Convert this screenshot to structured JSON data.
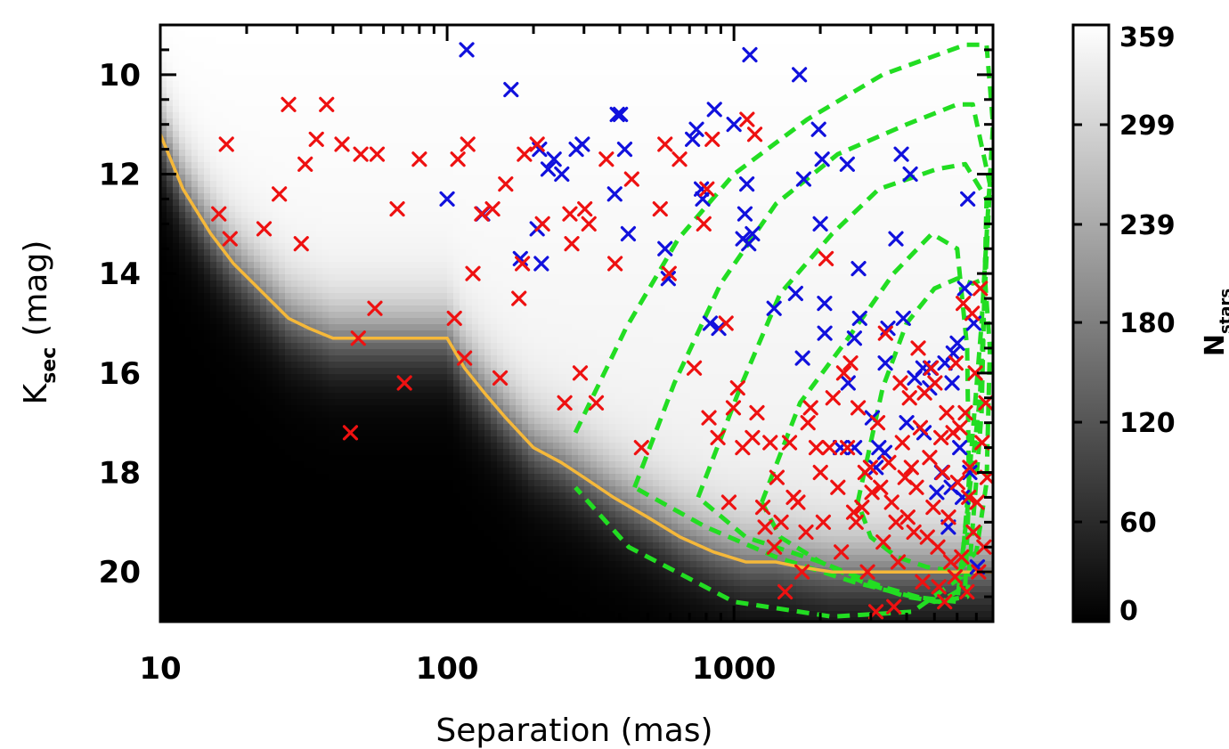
{
  "chart_data": {
    "type": "scatter",
    "xlabel": "Separation (mas)",
    "ylabel_main": "K",
    "ylabel_sub": "sec",
    "ylabel_unit": "(mag)",
    "x_scale": "log",
    "xlim": [
      10,
      8000
    ],
    "ylim": [
      21,
      9
    ],
    "x_ticks": [
      10,
      100,
      1000
    ],
    "x_tick_labels": [
      "10",
      "100",
      "1000"
    ],
    "y_ticks": [
      10,
      12,
      14,
      16,
      18,
      20
    ],
    "y_tick_labels": [
      "10",
      "12",
      "14",
      "16",
      "18",
      "20"
    ],
    "background": "sensitivity map of N_stars, grayscale 0 (black) to 359 (white)",
    "colorbar": {
      "label_main": "N",
      "label_sub": "stars",
      "ticks": [
        0,
        60,
        120,
        180,
        239,
        299,
        359
      ],
      "tick_labels": [
        "0",
        "60",
        "120",
        "180",
        "239",
        "299",
        "359"
      ],
      "range": [
        0,
        359
      ]
    },
    "sensitivity_curve": {
      "color": "#f5b83a",
      "x": [
        10,
        12,
        15,
        18,
        22,
        28,
        33,
        40,
        60,
        100,
        115,
        135,
        160,
        200,
        250,
        300,
        380,
        500,
        650,
        850,
        1100,
        1400,
        1700,
        2200,
        3000,
        8000
      ],
      "y": [
        11.2,
        12.3,
        13.2,
        13.8,
        14.3,
        14.9,
        15.1,
        15.3,
        15.3,
        15.3,
        15.9,
        16.4,
        16.9,
        17.5,
        17.8,
        18.1,
        18.5,
        18.9,
        19.3,
        19.6,
        19.8,
        19.8,
        19.9,
        20.0,
        20.0,
        20.0
      ]
    },
    "contours": {
      "color": "#22dd22",
      "style": "dashed",
      "levels": [
        {
          "x": [
            280,
            420,
            640,
            1000,
            1800,
            3300,
            6400,
            7600,
            8000,
            7300,
            6200,
            4200,
            2200,
            1000,
            430,
            280
          ],
          "y": [
            17.2,
            15.1,
            13.3,
            12.0,
            10.9,
            10.0,
            9.4,
            9.4,
            11.0,
            15.0,
            20.1,
            20.8,
            20.9,
            20.6,
            19.5,
            18.3
          ]
        },
        {
          "x": [
            450,
            620,
            900,
            1400,
            2300,
            4000,
            6000,
            6800,
            7800,
            7200,
            6000,
            4200,
            2600,
            1400,
            800,
            450
          ],
          "y": [
            18.3,
            16.2,
            14.2,
            12.6,
            11.6,
            11.0,
            10.6,
            10.6,
            12.2,
            16.5,
            20.6,
            20.5,
            20.2,
            19.7,
            19.1,
            18.3
          ]
        },
        {
          "x": [
            750,
            1050,
            1450,
            2200,
            3200,
            5100,
            6400,
            7600,
            7300,
            6500,
            5000,
            3300,
            2000,
            1100,
            750
          ],
          "y": [
            18.5,
            16.3,
            14.4,
            13.2,
            12.3,
            11.9,
            11.8,
            12.5,
            16.8,
            20.5,
            20.6,
            20.3,
            19.8,
            19.3,
            18.5
          ]
        },
        {
          "x": [
            1250,
            1700,
            2500,
            3600,
            4900,
            6000,
            6500,
            6600,
            6400,
            5200,
            4000,
            2800,
            2000,
            1450,
            1250
          ],
          "y": [
            18.6,
            16.6,
            15.3,
            14.0,
            13.2,
            13.5,
            15.5,
            18.4,
            20.3,
            20.6,
            20.5,
            20.2,
            19.8,
            19.3,
            18.6
          ]
        },
        {
          "x": [
            2700,
            3300,
            4000,
            5000,
            6000,
            6800,
            7500,
            7800,
            7600,
            7000,
            6000,
            4700,
            3700,
            3000,
            2700
          ],
          "y": [
            18.6,
            16.3,
            15.0,
            14.3,
            14.1,
            14.2,
            14.1,
            15.5,
            18.2,
            19.6,
            20.0,
            19.9,
            19.7,
            19.3,
            18.6
          ]
        }
      ]
    },
    "series": [
      {
        "name": "blue",
        "color": "#1111dd",
        "x": [
          100,
          117,
          133,
          167,
          180,
          206,
          210,
          213,
          225,
          236,
          251,
          282,
          296,
          384,
          392,
          402,
          416,
          428,
          575,
          590,
          717,
          740,
          770,
          778,
          826,
          855,
          885,
          1000,
          1074,
          1092,
          1109,
          1126,
          1136,
          1160,
          1380,
          1640,
          1691,
          1734,
          1750,
          1973,
          2000,
          2030,
          2070,
          2073,
          2350,
          2483,
          2500,
          2630,
          2634,
          2719,
          2743,
          3035,
          3130,
          3200,
          3355,
          3370,
          3442,
          3670,
          3832,
          3894,
          4000,
          4117,
          4264,
          4560,
          4598,
          4809,
          4836,
          5095,
          5300,
          5440,
          5590,
          5722,
          5760,
          5814,
          6010,
          6126,
          6255,
          6375,
          6532,
          6641,
          6856,
          7056
        ],
        "y": [
          12.5,
          9.5,
          12.8,
          10.3,
          13.7,
          13.1,
          11.5,
          13.8,
          11.9,
          11.7,
          12.0,
          11.5,
          11.4,
          12.4,
          10.8,
          10.8,
          11.5,
          13.2,
          13.5,
          14.1,
          11.3,
          11.1,
          12.3,
          12.5,
          15.0,
          10.7,
          15.1,
          11.0,
          13.3,
          12.8,
          12.2,
          13.4,
          9.6,
          13.2,
          14.7,
          14.4,
          10.0,
          15.7,
          12.1,
          11.1,
          13.0,
          11.7,
          14.6,
          15.2,
          17.5,
          11.8,
          16.2,
          15.3,
          17.5,
          13.9,
          14.9,
          16.9,
          17.9,
          17.5,
          17.6,
          15.8,
          15.1,
          13.3,
          11.6,
          14.9,
          17.0,
          12.0,
          16.1,
          15.9,
          17.2,
          16.3,
          15.9,
          18.4,
          18.0,
          15.8,
          19.1,
          18.3,
          16.2,
          15.6,
          15.4,
          17.5,
          18.5,
          14.3,
          12.5,
          18.0,
          15.0,
          19.9
        ]
      },
      {
        "name": "red",
        "color": "#ee1111",
        "x": [
          16,
          17,
          17.5,
          23,
          26,
          28,
          31,
          32,
          35,
          38,
          43,
          46,
          49,
          50,
          56,
          57,
          67,
          71,
          80,
          106,
          109,
          115,
          118,
          123,
          132,
          144,
          153,
          160,
          178,
          183,
          186,
          206,
          215,
          257,
          268,
          272,
          291,
          302,
          312,
          331,
          359,
          385,
          440,
          476,
          553,
          575,
          594,
          646,
          727,
          785,
          805,
          818,
          840,
          879,
          938,
          960,
          995,
          1030,
          1072,
          1111,
          1160,
          1182,
          1203,
          1261,
          1284,
          1337,
          1383,
          1412,
          1460,
          1508,
          1562,
          1613,
          1671,
          1727,
          1783,
          1811,
          1850,
          1936,
          2002,
          2048,
          2095,
          2152,
          2214,
          2303,
          2367,
          2414,
          2487,
          2549,
          2614,
          2665,
          2710,
          2794,
          2865,
          2921,
          2991,
          3028,
          3126,
          3170,
          3244,
          3315,
          3375,
          3464,
          3546,
          3610,
          3672,
          3735,
          3802,
          3866,
          3949,
          4036,
          4092,
          4154,
          4238,
          4325,
          4389,
          4465,
          4546,
          4617,
          4723,
          4813,
          4871,
          4950,
          5022,
          5135,
          5178,
          5270,
          5341,
          5427,
          5515,
          5596,
          5704,
          5804,
          5897,
          5940,
          6025,
          6136,
          6221,
          6301,
          6408,
          6495,
          6581,
          6641,
          6770,
          6831,
          6935,
          7038,
          7127,
          7221,
          7331,
          7439,
          7553,
          7637
        ],
        "y": [
          12.8,
          11.4,
          13.3,
          13.1,
          12.4,
          10.6,
          13.4,
          11.8,
          11.3,
          10.6,
          11.4,
          17.2,
          15.3,
          11.6,
          14.7,
          11.6,
          12.7,
          16.2,
          11.7,
          14.9,
          11.7,
          15.7,
          11.4,
          14.0,
          12.8,
          12.7,
          16.1,
          12.2,
          14.5,
          13.8,
          11.6,
          11.4,
          13.0,
          16.6,
          12.8,
          13.4,
          16.0,
          12.7,
          13.0,
          16.6,
          11.7,
          13.8,
          12.1,
          17.5,
          12.7,
          11.4,
          14.0,
          11.7,
          15.9,
          13.0,
          12.3,
          16.9,
          11.3,
          17.3,
          15.0,
          18.6,
          16.7,
          16.3,
          17.5,
          10.9,
          17.3,
          11.2,
          16.8,
          18.7,
          19.1,
          17.4,
          19.5,
          18.1,
          19.0,
          20.4,
          17.4,
          18.5,
          18.6,
          20.0,
          19.2,
          17.0,
          16.7,
          17.5,
          18.0,
          19.0,
          13.7,
          17.5,
          16.5,
          18.3,
          19.6,
          16.0,
          17.5,
          15.8,
          18.8,
          19.0,
          16.7,
          18.7,
          18.0,
          20.0,
          17.9,
          18.4,
          20.8,
          17.0,
          18.3,
          19.4,
          15.2,
          17.8,
          18.6,
          20.7,
          19.0,
          19.8,
          16.2,
          17.4,
          18.1,
          18.9,
          16.5,
          17.9,
          19.2,
          18.3,
          15.5,
          17.1,
          20.2,
          16.4,
          19.3,
          17.7,
          15.9,
          18.7,
          16.2,
          19.5,
          20.3,
          17.3,
          18.0,
          20.6,
          16.8,
          18.9,
          19.8,
          17.2,
          20.1,
          15.8,
          18.2,
          17.1,
          19.7,
          14.6,
          16.8,
          20.4,
          18.5,
          17.9,
          14.8,
          19.2,
          16.0,
          18.6,
          20.0,
          14.3,
          17.4,
          19.5,
          16.6,
          18.1
        ]
      }
    ]
  }
}
